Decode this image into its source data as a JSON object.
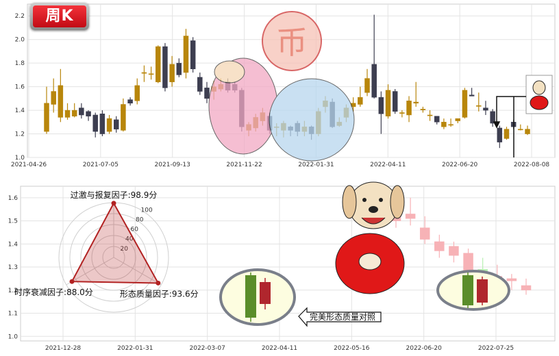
{
  "badge": {
    "label": "周K"
  },
  "callout": {
    "label": "完美形态质量对照"
  },
  "colors": {
    "up": "#b8860b",
    "down": "#3d3e50",
    "legend_up": "#5a8d2a",
    "legend_down": "#b0262d",
    "faint_up": "#b8f0b2",
    "faint_down": "#f7b2b6",
    "radar": "#b22222"
  },
  "chart_data": [
    {
      "type": "candlestick",
      "ylim": [
        1.0,
        2.3
      ],
      "yticks": [
        "1.0",
        "1.2",
        "1.4",
        "1.6",
        "1.8",
        "2.0",
        "2.2"
      ],
      "xticks": [
        "2021-04-26",
        "2021-07-05",
        "2021-09-13",
        "2021-11-22",
        "2022-01-31",
        "2022-04-11",
        "2022-06-20",
        "2022-08-08"
      ],
      "grid": true,
      "candles": [
        [
          1.22,
          1.46,
          1.6,
          1.2
        ],
        [
          1.45,
          1.56,
          1.67,
          1.38
        ],
        [
          1.34,
          1.61,
          1.75,
          1.3
        ],
        [
          1.34,
          1.4,
          1.46,
          1.32
        ],
        [
          1.35,
          1.4,
          1.46,
          1.34
        ],
        [
          1.42,
          1.36,
          1.46,
          1.33
        ],
        [
          1.39,
          1.35,
          1.4,
          1.31
        ],
        [
          1.36,
          1.22,
          1.38,
          1.17
        ],
        [
          1.37,
          1.2,
          1.4,
          1.18
        ],
        [
          1.22,
          1.33,
          1.36,
          1.2
        ],
        [
          1.32,
          1.24,
          1.35,
          1.21
        ],
        [
          1.23,
          1.45,
          1.5,
          1.22
        ],
        [
          1.49,
          1.46,
          1.51,
          1.44
        ],
        [
          1.48,
          1.61,
          1.67,
          1.45
        ],
        [
          1.72,
          1.72,
          1.78,
          1.64
        ],
        [
          1.71,
          1.71,
          1.77,
          1.66
        ],
        [
          1.64,
          1.94,
          1.95,
          1.63
        ],
        [
          1.94,
          1.59,
          1.97,
          1.56
        ],
        [
          1.64,
          1.79,
          1.86,
          1.6
        ],
        [
          1.8,
          1.7,
          1.84,
          1.68
        ],
        [
          1.72,
          2.03,
          2.09,
          1.67
        ],
        [
          1.99,
          1.75,
          2.02,
          1.72
        ],
        [
          1.68,
          1.56,
          1.72,
          1.53
        ],
        [
          1.59,
          1.5,
          1.64,
          1.46
        ],
        [
          1.56,
          1.6,
          1.65,
          1.49
        ],
        [
          1.58,
          1.62,
          1.67,
          1.56
        ],
        [
          1.64,
          1.57,
          1.67,
          1.55
        ],
        [
          1.62,
          1.57,
          1.64,
          1.55
        ],
        [
          1.57,
          1.26,
          1.59,
          1.22
        ],
        [
          1.23,
          1.28,
          1.3,
          1.18
        ],
        [
          1.25,
          1.34,
          1.37,
          1.22
        ],
        [
          1.31,
          1.38,
          1.42,
          1.27
        ],
        [
          1.35,
          1.23,
          1.38,
          1.2
        ],
        [
          1.26,
          1.26,
          1.29,
          1.18
        ],
        [
          1.23,
          1.29,
          1.31,
          1.17
        ],
        [
          1.26,
          1.23,
          1.27,
          1.18
        ],
        [
          1.29,
          1.22,
          1.31,
          1.18
        ],
        [
          1.22,
          1.26,
          1.31,
          1.18
        ],
        [
          1.26,
          1.2,
          1.27,
          1.15
        ],
        [
          1.2,
          1.39,
          1.42,
          1.18
        ],
        [
          1.43,
          1.48,
          1.52,
          1.38
        ],
        [
          1.47,
          1.26,
          1.5,
          1.25
        ],
        [
          1.27,
          1.3,
          1.34,
          1.26
        ],
        [
          1.34,
          1.42,
          1.45,
          1.3
        ],
        [
          1.43,
          1.46,
          1.51,
          1.39
        ],
        [
          1.45,
          1.51,
          1.6,
          1.43
        ],
        [
          1.55,
          1.67,
          1.75,
          1.52
        ],
        [
          1.79,
          1.51,
          2.21,
          1.5
        ],
        [
          1.51,
          1.37,
          1.56,
          1.2
        ],
        [
          1.35,
          1.57,
          1.62,
          1.33
        ],
        [
          1.56,
          1.39,
          1.58,
          1.37
        ],
        [
          1.38,
          1.38,
          1.4,
          1.34
        ],
        [
          1.36,
          1.48,
          1.52,
          1.3
        ],
        [
          1.46,
          1.47,
          1.64,
          1.43
        ],
        [
          1.41,
          1.41,
          1.43,
          1.38
        ],
        [
          1.36,
          1.36,
          1.4,
          1.31
        ],
        [
          1.35,
          1.3,
          1.35,
          1.28
        ],
        [
          1.26,
          1.3,
          1.33,
          1.24
        ],
        [
          1.28,
          1.28,
          1.33,
          1.26
        ],
        [
          1.31,
          1.33,
          1.33,
          1.29
        ],
        [
          1.34,
          1.57,
          1.59,
          1.33
        ],
        [
          1.53,
          1.52,
          1.59,
          1.52
        ],
        [
          1.44,
          1.44,
          1.55,
          1.39
        ],
        [
          1.42,
          1.4,
          1.48,
          1.36
        ],
        [
          1.39,
          1.29,
          1.41,
          1.26
        ],
        [
          1.25,
          1.13,
          1.27,
          1.08
        ],
        [
          1.16,
          1.24,
          1.26,
          1.15
        ],
        [
          1.3,
          1.26,
          1.32,
          1.24
        ],
        [
          1.24,
          1.24,
          1.28,
          1.23
        ],
        [
          1.2,
          1.24,
          1.27,
          1.19
        ]
      ]
    },
    {
      "type": "candlestick",
      "ylim": [
        0.98,
        1.65
      ],
      "yticks": [
        "1.0",
        "1.1",
        "1.2",
        "1.3",
        "1.4",
        "1.5",
        "1.6"
      ],
      "xticks": [
        "2021-12-28",
        "2022-01-31",
        "2022-03-07",
        "2022-04-11",
        "2022-05-16",
        "2022-06-20",
        "2022-07-25"
      ],
      "grid": true,
      "candles": [
        [
          1.56,
          1.5,
          1.58,
          1.47
        ],
        [
          1.53,
          1.51,
          1.6,
          1.48
        ],
        [
          1.47,
          1.42,
          1.52,
          1.4
        ],
        [
          1.41,
          1.37,
          1.44,
          1.34
        ],
        [
          1.39,
          1.35,
          1.41,
          1.32
        ],
        [
          1.36,
          1.27,
          1.38,
          1.24
        ],
        [
          1.27,
          1.29,
          1.34,
          1.25
        ],
        [
          1.26,
          1.24,
          1.31,
          1.22
        ],
        [
          1.25,
          1.24,
          1.27,
          1.2
        ],
        [
          1.22,
          1.2,
          1.25,
          1.18
        ]
      ]
    },
    {
      "type": "radar",
      "rings": [
        "20",
        "40",
        "60",
        "80",
        "100"
      ],
      "axes": [
        {
          "label": "过激与报复因子:98.9分",
          "value": 98.9
        },
        {
          "label": "形态质量因子:93.6分",
          "value": 93.6
        },
        {
          "label": "时序衰减因子:88.0分",
          "value": 88.0
        }
      ]
    }
  ]
}
